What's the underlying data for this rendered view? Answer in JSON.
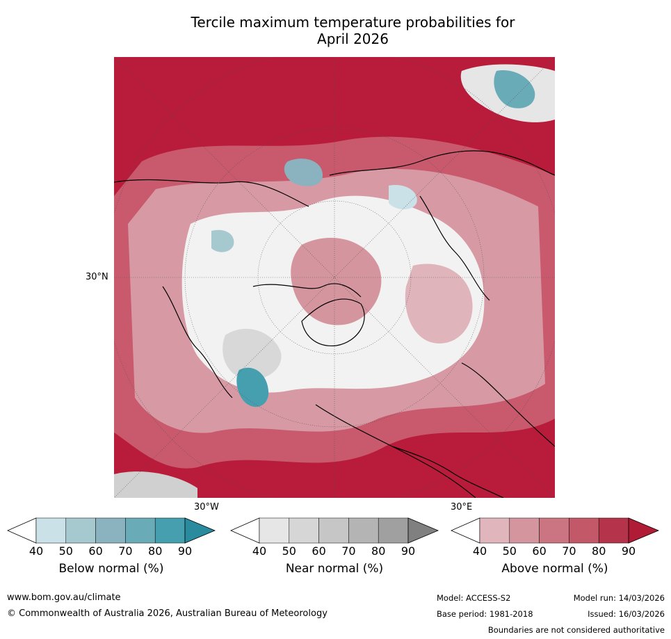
{
  "title": {
    "line1": "Tercile maximum temperature probabilities for",
    "line2": "April 2026"
  },
  "map": {
    "lat_label": "30°N",
    "lon_label_left": "30°W",
    "lon_label_right": "30°E"
  },
  "colorbars": [
    {
      "name": "below",
      "title": "Below normal (%)",
      "ticks": [
        "40",
        "50",
        "60",
        "70",
        "80",
        "90"
      ],
      "colors": [
        "#ffffff",
        "#c9e1e7",
        "#a6c8cf",
        "#8ab3bf",
        "#6aabb8",
        "#459fae",
        "#2a8a9e"
      ]
    },
    {
      "name": "near",
      "title": "Near normal (%)",
      "ticks": [
        "40",
        "50",
        "60",
        "70",
        "80",
        "90"
      ],
      "colors": [
        "#ffffff",
        "#e6e6e6",
        "#d6d6d6",
        "#c6c6c6",
        "#b4b4b4",
        "#a0a0a0",
        "#808080"
      ]
    },
    {
      "name": "above",
      "title": "Above normal (%)",
      "ticks": [
        "40",
        "50",
        "60",
        "70",
        "80",
        "90"
      ],
      "colors": [
        "#ffffff",
        "#e0b5bb",
        "#d5959f",
        "#ca7581",
        "#c25868",
        "#b6344b",
        "#b01c36"
      ]
    }
  ],
  "footer": {
    "website": "www.bom.gov.au/climate",
    "copyright": "© Commonwealth of Australia 2026, Australian Bureau of Meteorology",
    "model": "Model: ACCESS-S2",
    "model_run": "Model run: 14/03/2026",
    "base_period": "Base period: 1981-2018",
    "issued": "Issued: 16/03/2026",
    "disclaimer": "Boundaries are not considered authoritative"
  }
}
